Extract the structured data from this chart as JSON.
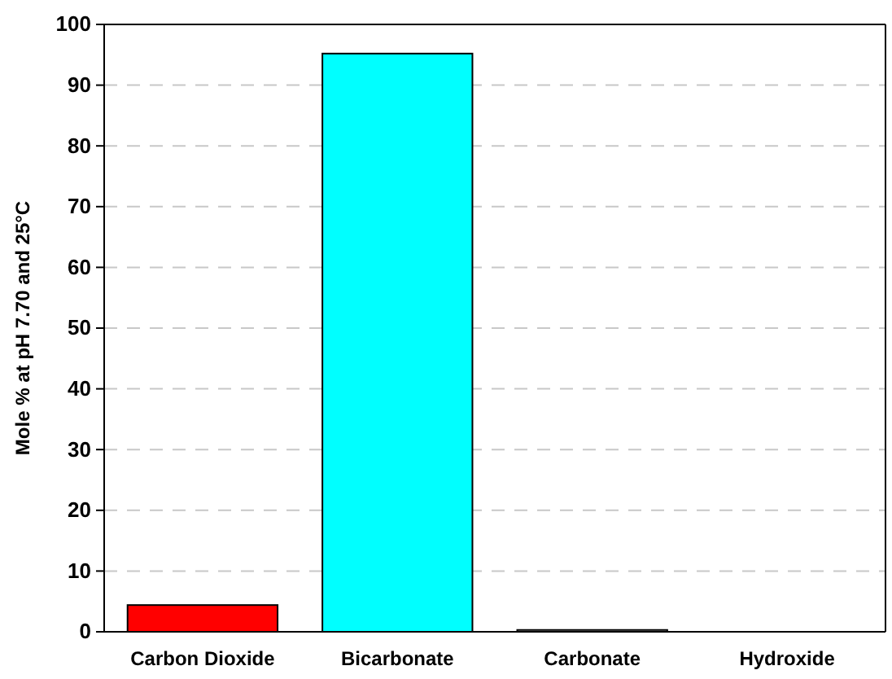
{
  "chart_data": {
    "type": "bar",
    "ylabel": "Mole % at pH 7.70 and 25°C",
    "categories": [
      "Carbon Dioxide",
      "Bicarbonate",
      "Carbonate",
      "Hydroxide"
    ],
    "values": [
      4.4,
      95.2,
      0.3,
      0
    ],
    "colors": [
      "#ff0000",
      "#00ffff",
      "#ffffff",
      "#ffffff"
    ],
    "ylim": [
      0,
      100
    ],
    "yticks": [
      0,
      10,
      20,
      30,
      40,
      50,
      60,
      70,
      80,
      90,
      100
    ],
    "grid": "y"
  }
}
